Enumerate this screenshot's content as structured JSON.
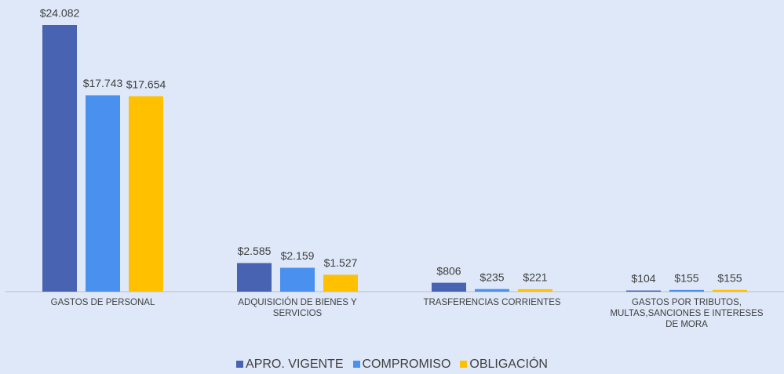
{
  "chart_data": {
    "type": "bar",
    "categories": [
      "GASTOS DE PERSONAL",
      "ADQUISICIÓN DE BIENES Y SERVICIOS",
      "TRASFERENCIAS CORRIENTES",
      "GASTOS POR TRIBUTOS, MULTAS,SANCIONES E INTERESES DE MORA"
    ],
    "series": [
      {
        "name": "APRO. VIGENTE",
        "color": "#4863b1",
        "values": [
          24082,
          2585,
          806,
          104
        ],
        "value_labels": [
          "$24.082",
          "$2.585",
          "$806",
          "$104"
        ]
      },
      {
        "name": "COMPROMISO",
        "color": "#4a90ef",
        "values": [
          17743,
          2159,
          235,
          155
        ],
        "value_labels": [
          "$17.743",
          "$2.159",
          "$235",
          "$155"
        ]
      },
      {
        "name": "OBLIGACIÓN",
        "color": "#ffc000",
        "values": [
          17654,
          1527,
          221,
          155
        ],
        "value_labels": [
          "$17.654",
          "$1.527",
          "$221",
          "$155"
        ]
      }
    ],
    "legend": "bottom"
  }
}
